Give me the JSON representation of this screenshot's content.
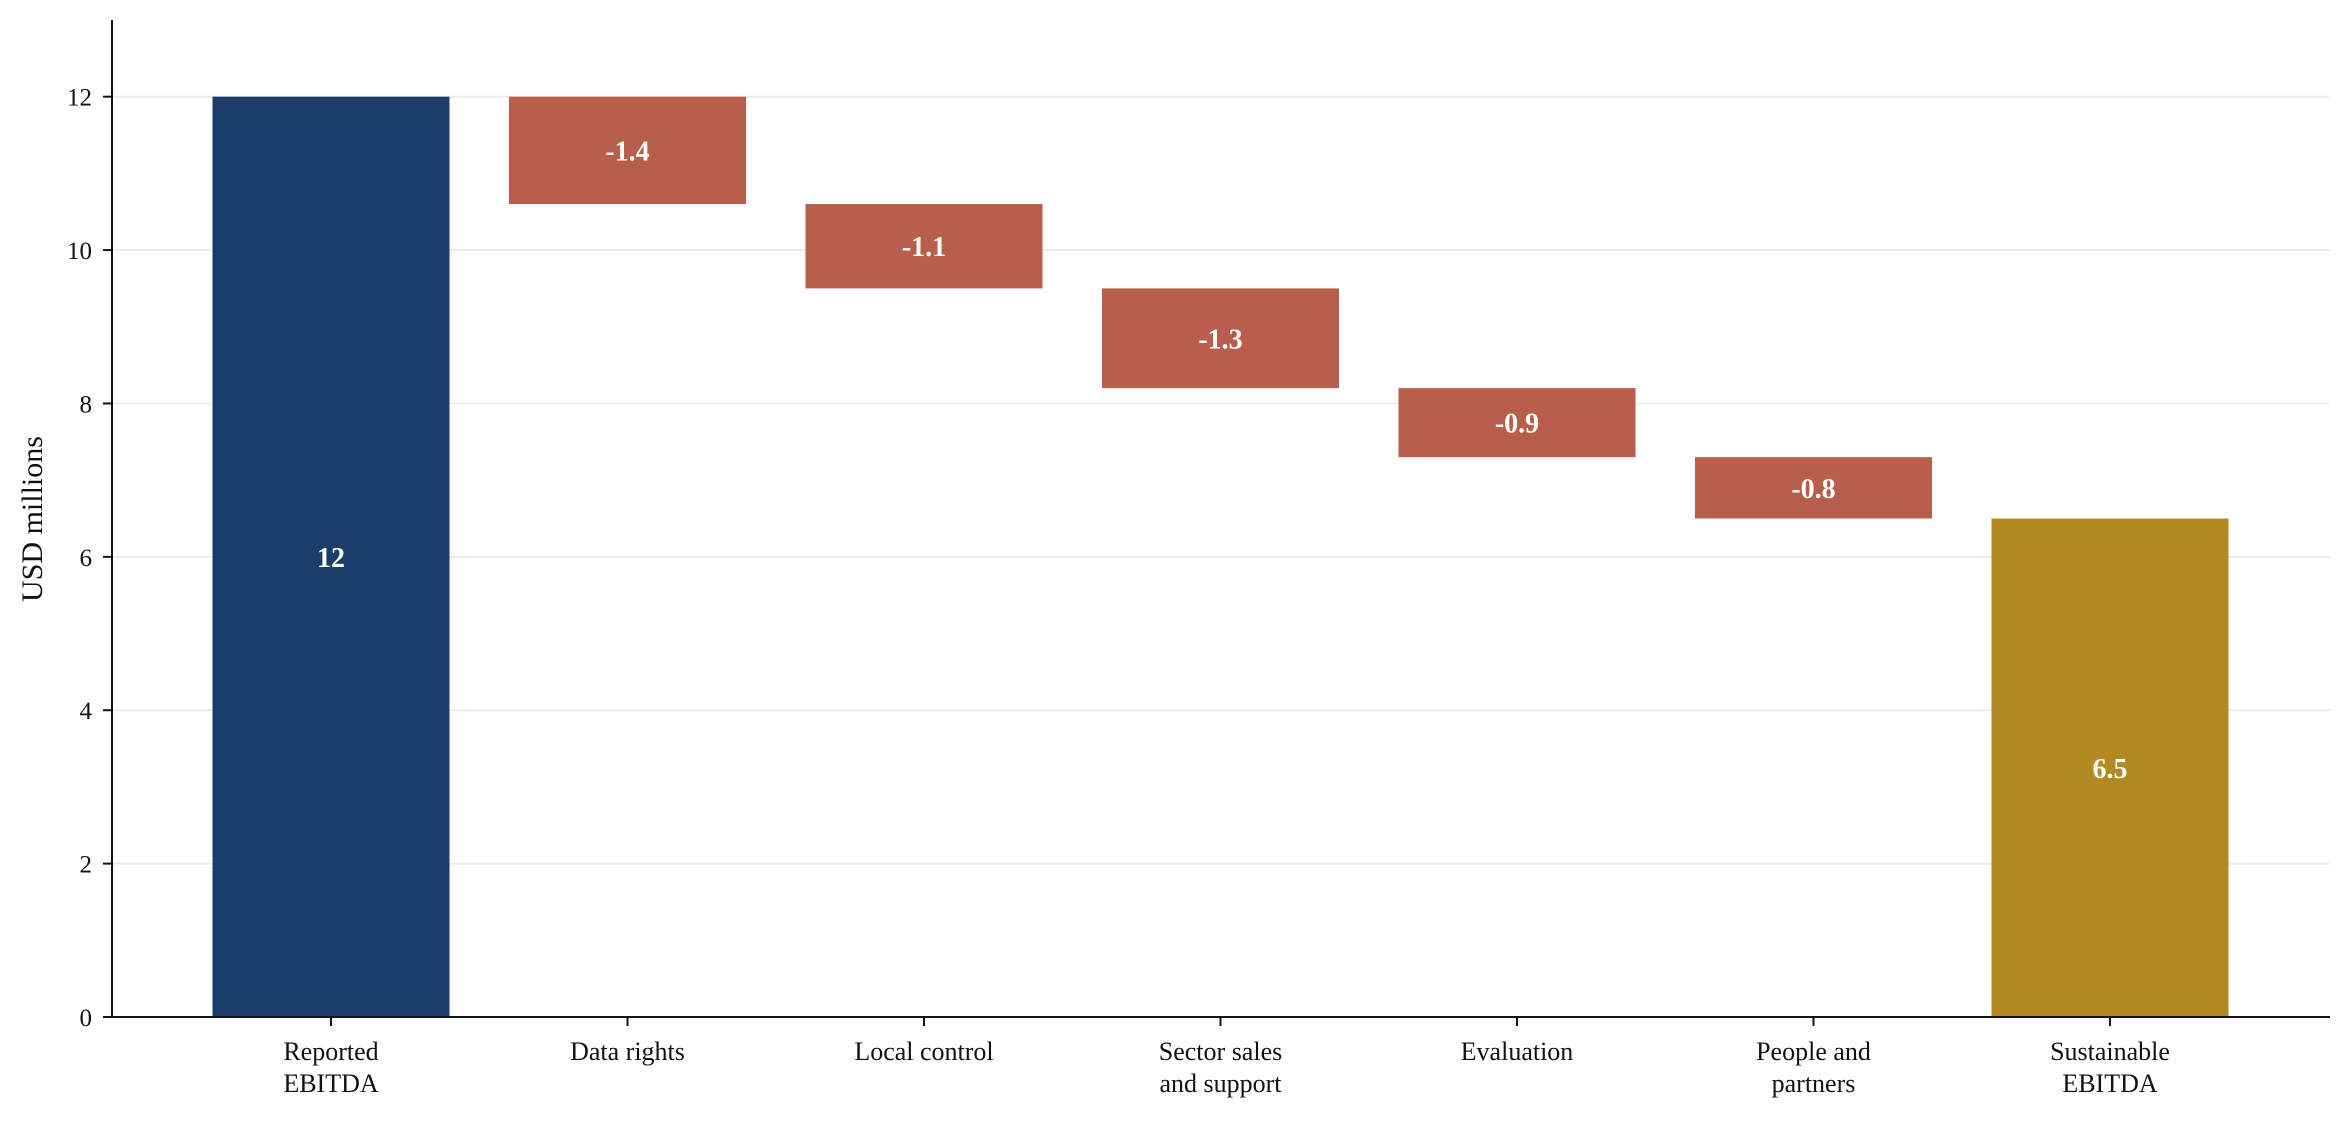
{
  "chart_data": {
    "type": "waterfall",
    "title": "",
    "xlabel": "",
    "ylabel": "USD millions",
    "ylim": [
      0,
      13
    ],
    "yticks": [
      0,
      2,
      4,
      6,
      8,
      10,
      12
    ],
    "grid": "horizontal",
    "categories": [
      [
        "Reported",
        "EBITDA"
      ],
      [
        "Data rights"
      ],
      [
        "Local control"
      ],
      [
        "Sector sales",
        "and support"
      ],
      [
        "Evaluation"
      ],
      [
        "People and",
        "partners"
      ],
      [
        "Sustainable",
        "EBITDA"
      ]
    ],
    "steps": [
      {
        "kind": "total",
        "start": 0,
        "end": 12,
        "label": "12"
      },
      {
        "kind": "decrease",
        "start": 12,
        "end": 10.6,
        "label": "-1.4"
      },
      {
        "kind": "decrease",
        "start": 10.6,
        "end": 9.5,
        "label": "-1.1"
      },
      {
        "kind": "decrease",
        "start": 9.5,
        "end": 8.2,
        "label": "-1.3"
      },
      {
        "kind": "decrease",
        "start": 8.2,
        "end": 7.3,
        "label": "-0.9"
      },
      {
        "kind": "decrease",
        "start": 7.3,
        "end": 6.5,
        "label": "-0.8"
      },
      {
        "kind": "total",
        "start": 0,
        "end": 6.5,
        "label": "6.5"
      }
    ],
    "colors": {
      "start_total": "#1b3d69",
      "decrease": "#b95d4c",
      "end_total": "#b38a22",
      "grid": "#ececec",
      "axis": "#111111"
    }
  }
}
